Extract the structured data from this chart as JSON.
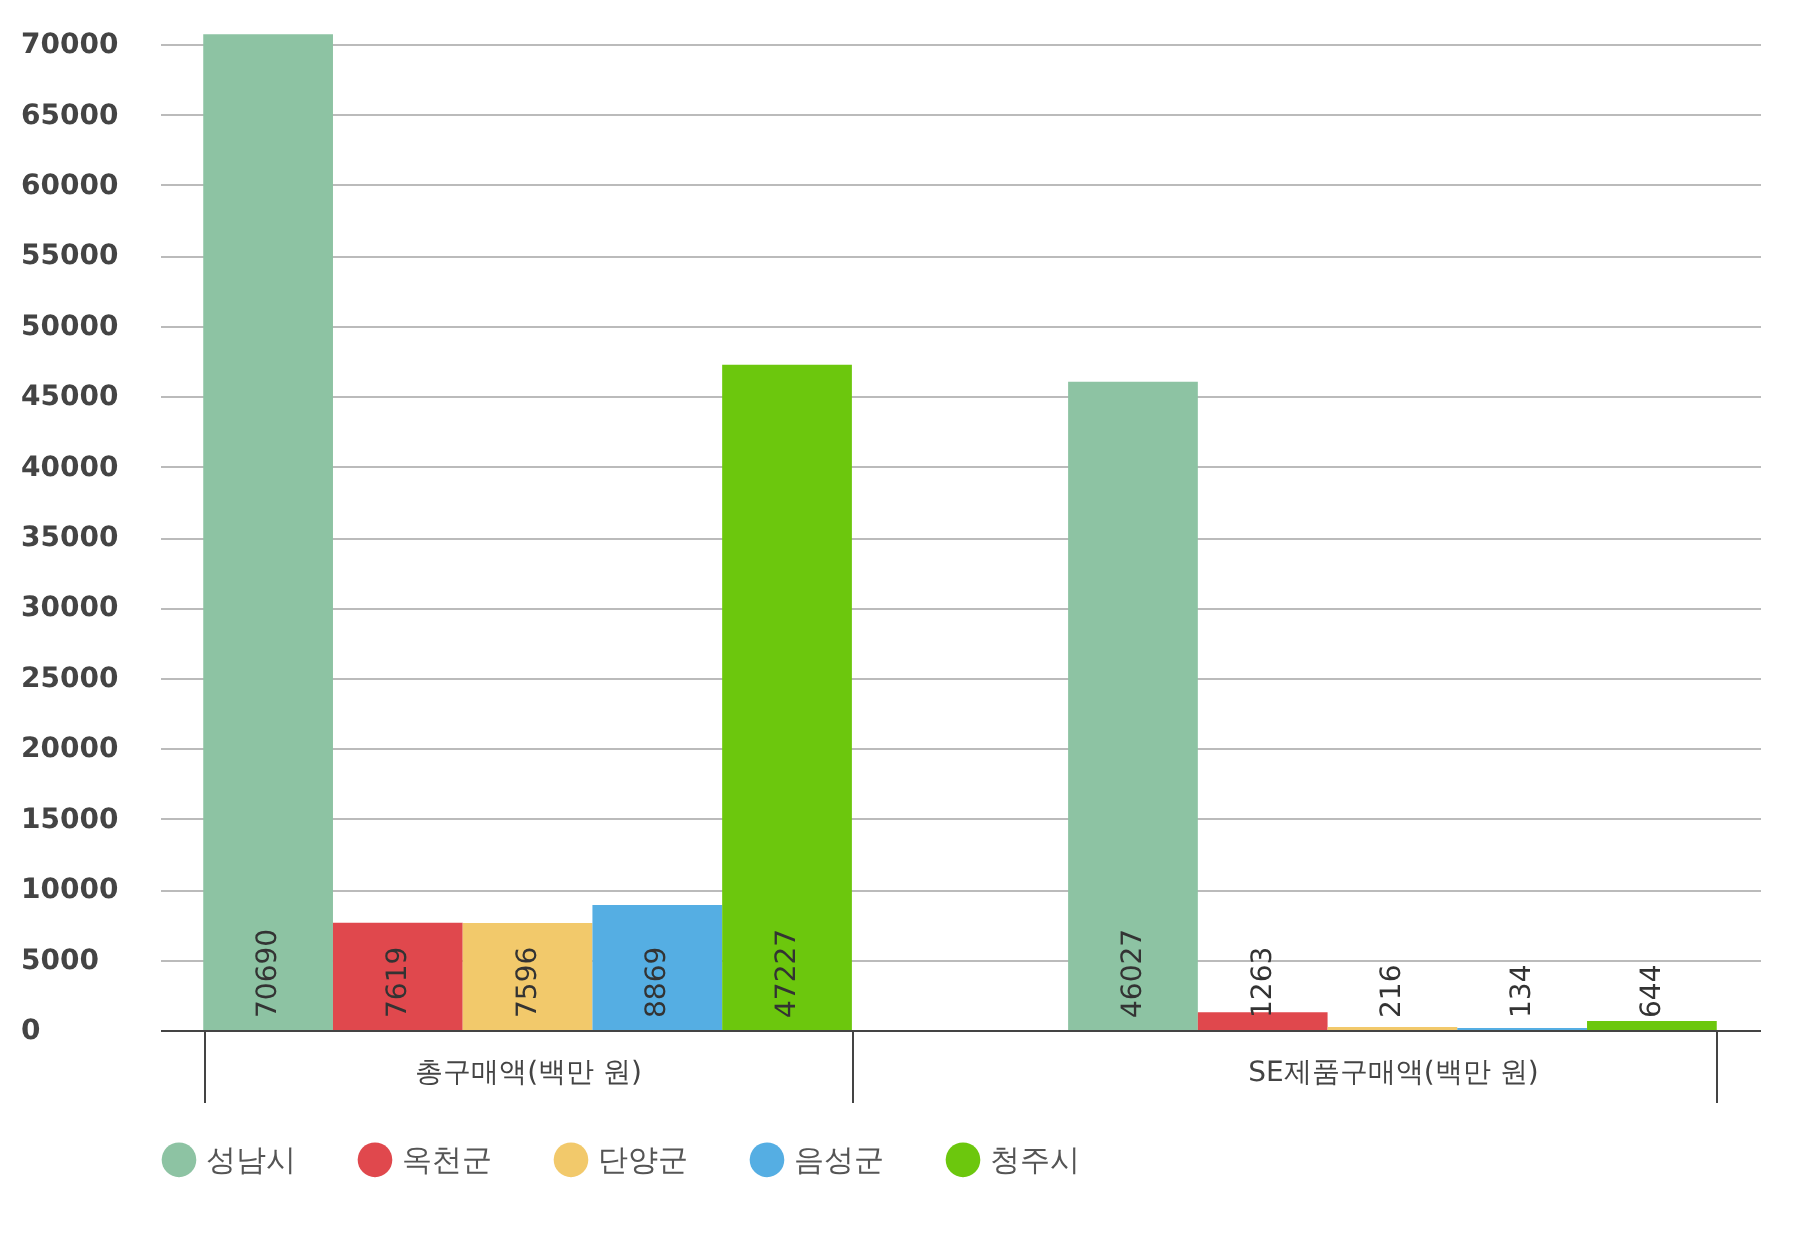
{
  "chart_data": {
    "type": "bar",
    "categories": [
      "총구매액(백만 원)",
      "SE제품구매액(백만 원)"
    ],
    "series": [
      {
        "name": "성남시",
        "color": "#8dc3a3",
        "values": [
          70690,
          46027
        ]
      },
      {
        "name": "옥천군",
        "color": "#e0484d",
        "values": [
          7619,
          1263
        ]
      },
      {
        "name": "단양군",
        "color": "#f2c96b",
        "values": [
          7596,
          216
        ]
      },
      {
        "name": "음성군",
        "color": "#55aee3",
        "values": [
          8869,
          134
        ]
      },
      {
        "name": "청주시",
        "color": "#6cc70d",
        "values": [
          47227,
          644
        ]
      }
    ],
    "ylim": [
      0,
      71000
    ],
    "yticks": [
      0,
      5000,
      10000,
      15000,
      20000,
      25000,
      30000,
      35000,
      40000,
      45000,
      50000,
      55000,
      60000,
      65000,
      70000
    ],
    "grid": "y",
    "legend": "bottom",
    "data_labels": true
  }
}
